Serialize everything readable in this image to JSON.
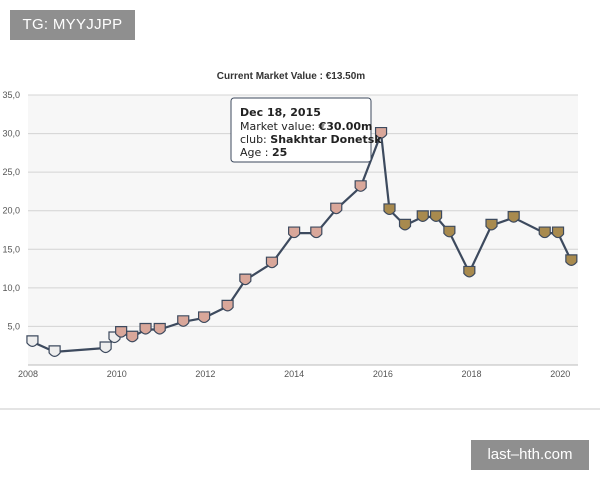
{
  "watermarks": {
    "top": "TG: MYYJJPP",
    "bottom": "last–hth.com"
  },
  "chart_data": {
    "type": "line",
    "title": "Current Market Value : €13.50m",
    "xlabel": "",
    "ylabel": "",
    "x_ticks": [
      "2008",
      "2010",
      "2012",
      "2014",
      "2016",
      "2018",
      "2020"
    ],
    "y_ticks": [
      "35,0",
      "30,0",
      "25,0",
      "20,0",
      "15,0",
      "10,0",
      "5,0"
    ],
    "xlim": [
      2008,
      2020.4
    ],
    "ylim": [
      0,
      35
    ],
    "series": [
      {
        "name": "Market value (€m)",
        "points": [
          [
            2008.1,
            3.0
          ],
          [
            2008.6,
            1.7
          ],
          [
            2009.75,
            2.2
          ],
          [
            2009.95,
            3.5
          ],
          [
            2010.1,
            4.2
          ],
          [
            2010.35,
            3.6
          ],
          [
            2010.65,
            4.6
          ],
          [
            2010.97,
            4.6
          ],
          [
            2011.5,
            5.6
          ],
          [
            2011.97,
            6.1
          ],
          [
            2012.5,
            7.6
          ],
          [
            2012.9,
            11.0
          ],
          [
            2013.5,
            13.2
          ],
          [
            2014.0,
            17.1
          ],
          [
            2014.5,
            17.1
          ],
          [
            2014.95,
            20.2
          ],
          [
            2015.5,
            23.1
          ],
          [
            2015.96,
            30.0
          ],
          [
            2016.15,
            20.1
          ],
          [
            2016.5,
            18.1
          ],
          [
            2016.9,
            19.2
          ],
          [
            2017.2,
            19.2
          ],
          [
            2017.5,
            17.2
          ],
          [
            2017.95,
            12.0
          ],
          [
            2018.45,
            18.1
          ],
          [
            2018.95,
            19.1
          ],
          [
            2019.65,
            17.1
          ],
          [
            2019.95,
            17.1
          ],
          [
            2020.25,
            13.5
          ]
        ]
      }
    ],
    "tooltip": {
      "date": "Dec 18, 2015",
      "value_label": "Market value: ",
      "value": "€30.00m",
      "club_label": "club: ",
      "club": "Shakhtar Donetsk",
      "age_label": "Age : ",
      "age": "25"
    }
  },
  "colors": {
    "line": "#3d4a5e",
    "grid": "#d4d4d4",
    "plot_bg": "#f7f7f7",
    "tooltip_border": "#3d4a5e",
    "badge_early": "#eeeeee",
    "badge_mid": "#d9a79a",
    "badge_late": "#a88a4e"
  }
}
